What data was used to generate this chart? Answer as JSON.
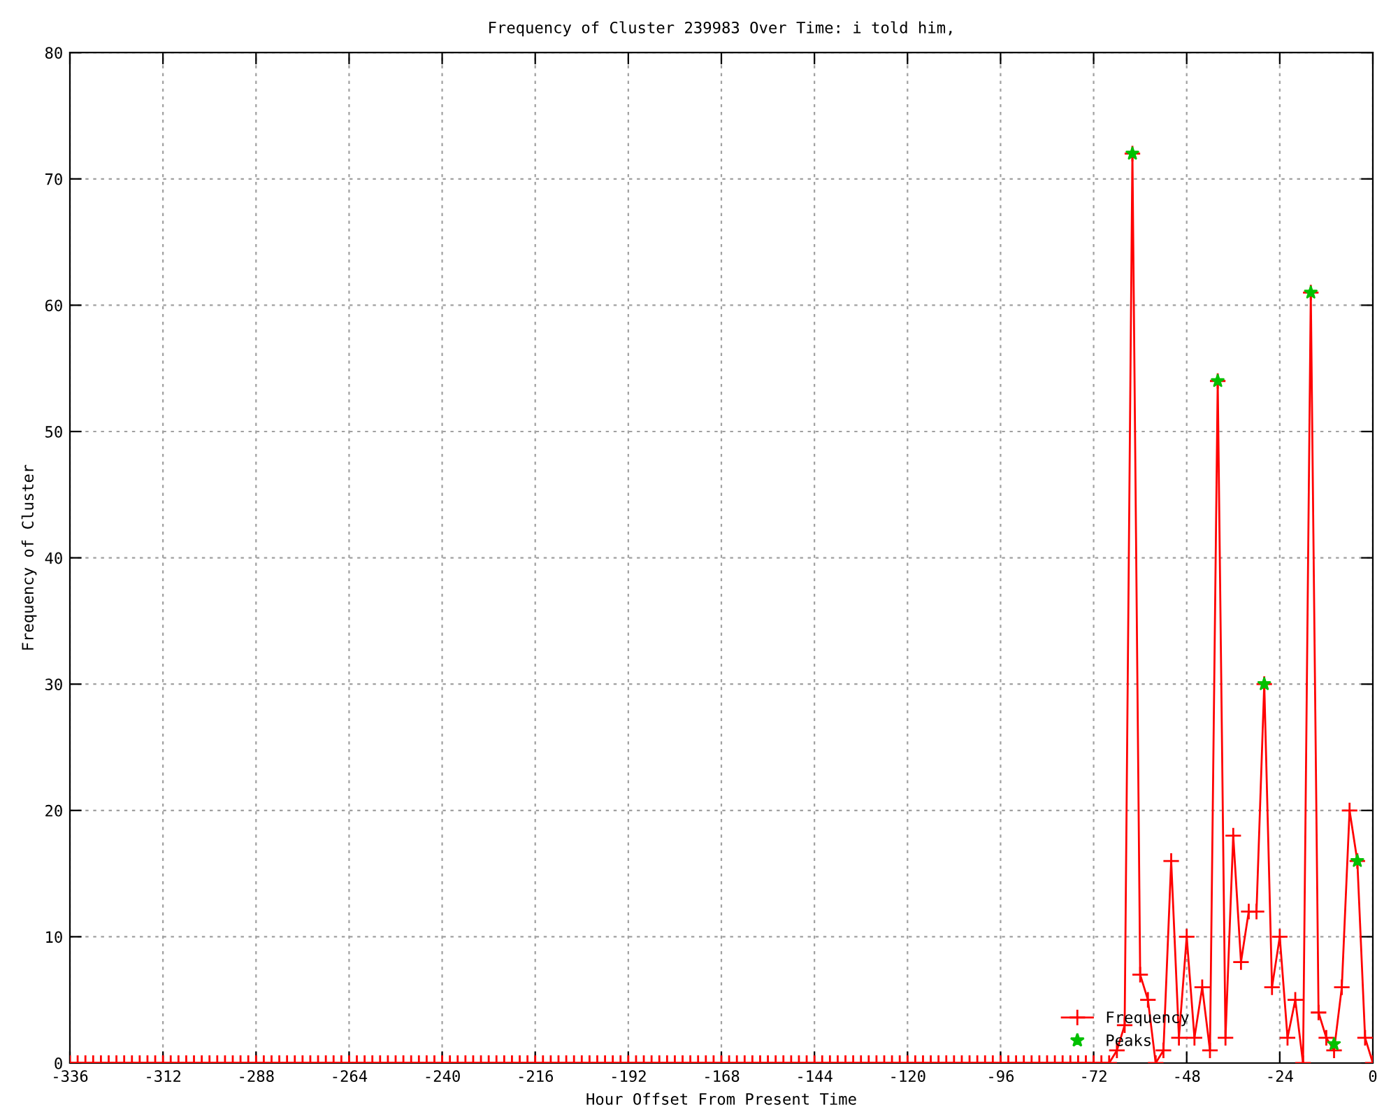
{
  "chart_data": {
    "type": "line",
    "title": "Frequency of Cluster 239983 Over Time: i told him,",
    "xlabel": "Hour Offset From Present Time",
    "ylabel": "Frequency of Cluster",
    "series": [
      {
        "name": "Frequency",
        "color": "#ff0000",
        "marker": "cross",
        "x": [
          -336,
          -334,
          -332,
          -330,
          -328,
          -326,
          -324,
          -322,
          -320,
          -318,
          -316,
          -314,
          -312,
          -310,
          -308,
          -306,
          -304,
          -302,
          -300,
          -298,
          -296,
          -294,
          -292,
          -290,
          -288,
          -286,
          -284,
          -282,
          -280,
          -278,
          -276,
          -274,
          -272,
          -270,
          -268,
          -266,
          -264,
          -262,
          -260,
          -258,
          -256,
          -254,
          -252,
          -250,
          -248,
          -246,
          -244,
          -242,
          -240,
          -238,
          -236,
          -234,
          -232,
          -230,
          -228,
          -226,
          -224,
          -222,
          -220,
          -218,
          -216,
          -214,
          -212,
          -210,
          -208,
          -206,
          -204,
          -202,
          -200,
          -198,
          -196,
          -194,
          -192,
          -190,
          -188,
          -186,
          -184,
          -182,
          -180,
          -178,
          -176,
          -174,
          -172,
          -170,
          -168,
          -166,
          -164,
          -162,
          -160,
          -158,
          -156,
          -154,
          -152,
          -150,
          -148,
          -146,
          -144,
          -142,
          -140,
          -138,
          -136,
          -134,
          -132,
          -130,
          -128,
          -126,
          -124,
          -122,
          -120,
          -118,
          -116,
          -114,
          -112,
          -110,
          -108,
          -106,
          -104,
          -102,
          -100,
          -98,
          -96,
          -94,
          -92,
          -90,
          -88,
          -86,
          -84,
          -82,
          -80,
          -78,
          -76,
          -74,
          -72,
          -70,
          -68,
          -66,
          -64,
          -62,
          -60,
          -58,
          -56,
          -54,
          -52,
          -50,
          -48,
          -46,
          -44,
          -42,
          -40,
          -38,
          -36,
          -34,
          -32,
          -30,
          -28,
          -26,
          -24,
          -22,
          -20,
          -18,
          -16,
          -14,
          -12,
          -10,
          -8,
          -6,
          -4,
          -2,
          0
        ],
        "values": [
          0,
          0,
          0,
          0,
          0,
          0,
          0,
          0,
          0,
          0,
          0,
          0,
          0,
          0,
          0,
          0,
          0,
          0,
          0,
          0,
          0,
          0,
          0,
          0,
          0,
          0,
          0,
          0,
          0,
          0,
          0,
          0,
          0,
          0,
          0,
          0,
          0,
          0,
          0,
          0,
          0,
          0,
          0,
          0,
          0,
          0,
          0,
          0,
          0,
          0,
          0,
          0,
          0,
          0,
          0,
          0,
          0,
          0,
          0,
          0,
          0,
          0,
          0,
          0,
          0,
          0,
          0,
          0,
          0,
          0,
          0,
          0,
          0,
          0,
          0,
          0,
          0,
          0,
          0,
          0,
          0,
          0,
          0,
          0,
          0,
          0,
          0,
          0,
          0,
          0,
          0,
          0,
          0,
          0,
          0,
          0,
          0,
          0,
          0,
          0,
          0,
          0,
          0,
          0,
          0,
          0,
          0,
          0,
          0,
          0,
          0,
          0,
          0,
          0,
          0,
          0,
          0,
          0,
          0,
          0,
          0,
          0,
          0,
          0,
          0,
          0,
          0,
          0,
          0,
          0,
          0,
          0,
          0,
          0,
          0,
          1,
          3,
          72,
          7,
          5,
          0,
          1,
          16,
          2,
          10,
          2,
          6,
          1,
          54,
          2,
          18,
          8,
          12,
          12,
          30,
          6,
          10,
          2,
          5,
          0,
          61,
          4,
          2,
          1,
          6,
          20,
          16,
          2,
          0
        ]
      },
      {
        "name": "Peaks",
        "type": "scatter",
        "color": "#00c000",
        "marker": "star",
        "x": [
          -62,
          -40,
          -28,
          -16,
          -10,
          -4
        ],
        "values": [
          72,
          54,
          30,
          61,
          1.5,
          16
        ]
      }
    ],
    "xlim": [
      -336,
      0
    ],
    "xticks": [
      -336,
      -312,
      -288,
      -264,
      -240,
      -216,
      -192,
      -168,
      -144,
      -120,
      -96,
      -72,
      -48,
      -24,
      0
    ],
    "ylim": [
      0,
      80
    ],
    "yticks": [
      0,
      10,
      20,
      30,
      40,
      50,
      60,
      70,
      80
    ],
    "grid": true,
    "legend": "bottom right"
  }
}
